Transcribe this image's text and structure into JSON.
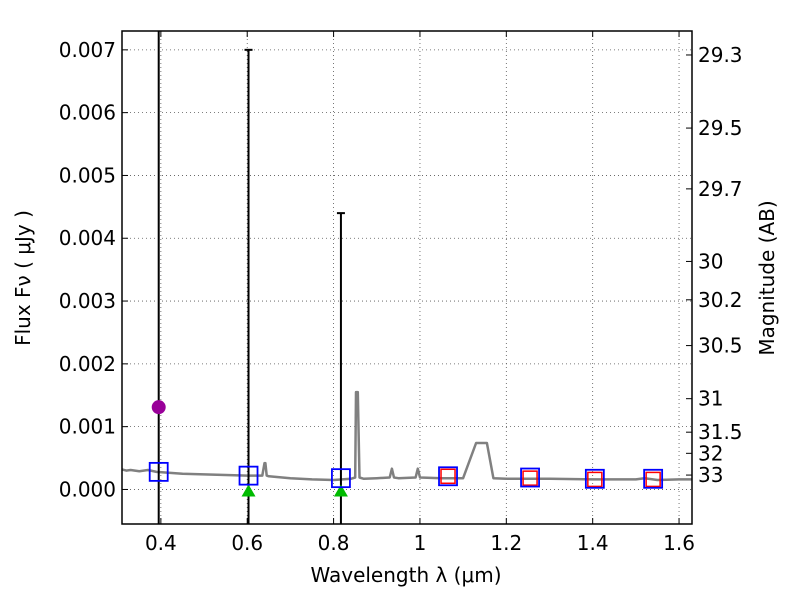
{
  "chart_data": {
    "type": "scatter",
    "title": "",
    "xlabel": "Wavelength  λ (μm)",
    "ylabel": "Flux  Fν  ( μJy )",
    "ylabel_right": "Magnitude (AB)",
    "xlim": [
      0.31,
      1.63
    ],
    "ylim": [
      -0.00055,
      0.0073
    ],
    "grid": true,
    "x_ticks": [
      0.4,
      0.6,
      0.8,
      1.0,
      1.2,
      1.4,
      1.6
    ],
    "x_tick_labels": [
      "0.4",
      "0.6",
      "0.8",
      "1",
      "1.2",
      "1.4",
      "1.6"
    ],
    "y_ticks": [
      0.0,
      0.001,
      0.002,
      0.003,
      0.004,
      0.005,
      0.006,
      0.007
    ],
    "y_tick_labels": [
      "0.000",
      "0.001",
      "0.002",
      "0.003",
      "0.004",
      "0.005",
      "0.006",
      "0.007"
    ],
    "mag_ticks": [
      29.3,
      29.5,
      29.7,
      30,
      30.2,
      30.5,
      31,
      31.5,
      32,
      33
    ],
    "mag_tick_labels": [
      "29.3",
      "29.5",
      "29.7",
      "30",
      "30.2",
      "30.5",
      "31",
      "31.5",
      "32",
      "33"
    ],
    "model_spectrum": {
      "name": "model SED",
      "color": "#808080",
      "x": [
        0.31,
        0.32,
        0.33,
        0.35,
        0.37,
        0.39,
        0.41,
        0.43,
        0.45,
        0.5,
        0.55,
        0.6,
        0.635,
        0.64,
        0.642,
        0.645,
        0.65,
        0.7,
        0.75,
        0.8,
        0.84,
        0.85,
        0.852,
        0.856,
        0.86,
        0.87,
        0.9,
        0.93,
        0.935,
        0.94,
        0.95,
        0.99,
        0.995,
        1.0,
        1.05,
        1.1,
        1.13,
        1.14,
        1.155,
        1.17,
        1.2,
        1.3,
        1.4,
        1.5,
        1.52,
        1.55,
        1.6,
        1.63
      ],
      "y": [
        0.00032,
        0.0003,
        0.00031,
        0.00029,
        0.00031,
        0.00028,
        0.00027,
        0.00026,
        0.00025,
        0.00024,
        0.00023,
        0.00022,
        0.00022,
        0.00042,
        0.00042,
        0.00022,
        0.00021,
        0.00018,
        0.00016,
        0.00015,
        0.00017,
        0.00019,
        0.00155,
        0.00155,
        0.00019,
        0.00017,
        0.00018,
        0.00019,
        0.00033,
        0.00019,
        0.00018,
        0.00019,
        0.00033,
        0.00019,
        0.00018,
        0.00018,
        0.00074,
        0.00074,
        0.00074,
        0.00018,
        0.00017,
        0.00017,
        0.00016,
        0.00016,
        0.00018,
        0.00015,
        0.00016,
        0.00016
      ]
    },
    "detections": [
      {
        "name": "detection",
        "x": 0.395,
        "y": 0.00131,
        "color": "#990099"
      }
    ],
    "errorbars": [
      {
        "x": 0.395,
        "low": -0.00055,
        "high": 0.0073
      },
      {
        "x": 0.603,
        "low": -0.00055,
        "high": 0.007
      },
      {
        "x": 0.817,
        "low": -0.00055,
        "high": 0.0044
      }
    ],
    "upper_limits": [
      {
        "name": "upper limit",
        "x": 0.603,
        "y": 0.0,
        "color": "#00bb00"
      },
      {
        "name": "upper limit",
        "x": 0.817,
        "y": 0.0,
        "color": "#00bb00"
      }
    ],
    "model_photometry": [
      {
        "x": 0.395,
        "y": 0.00028,
        "color": "#0000ff"
      },
      {
        "x": 0.603,
        "y": 0.00022,
        "color": "#0000ff"
      },
      {
        "x": 0.817,
        "y": 0.00018,
        "color": "#0000ff"
      },
      {
        "x": 1.065,
        "y": 0.00021,
        "color": "#0000ff"
      },
      {
        "x": 1.255,
        "y": 0.00019,
        "color": "#0000ff"
      },
      {
        "x": 1.405,
        "y": 0.00017,
        "color": "#0000ff"
      },
      {
        "x": 1.54,
        "y": 0.00017,
        "color": "#0000ff"
      }
    ],
    "observed_photometry": [
      {
        "x": 1.065,
        "y": 0.00021,
        "color": "#ff0000"
      },
      {
        "x": 1.255,
        "y": 0.00018,
        "color": "#ff0000"
      },
      {
        "x": 1.405,
        "y": 0.00016,
        "color": "#ff0000"
      },
      {
        "x": 1.54,
        "y": 0.00016,
        "color": "#ff0000"
      }
    ]
  }
}
